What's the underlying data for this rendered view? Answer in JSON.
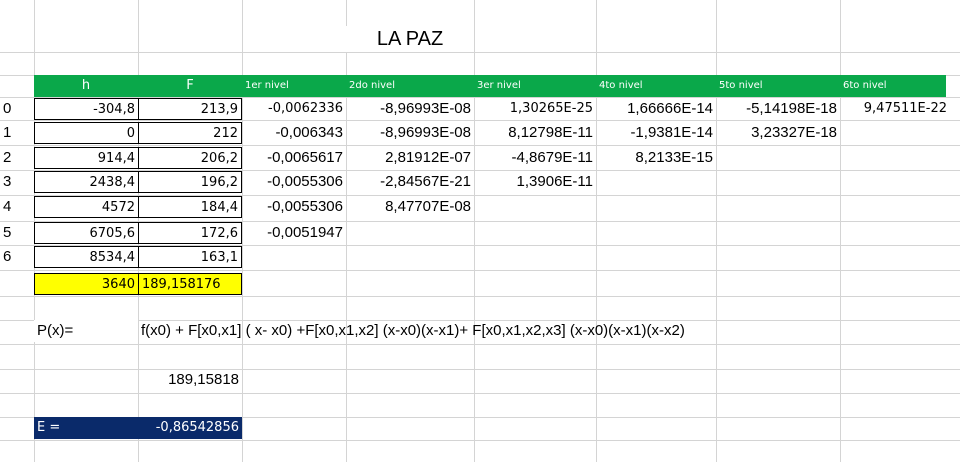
{
  "title": "LA PAZ",
  "table": {
    "col_h": "h",
    "col_f": "F",
    "levels": [
      "1er nivel",
      "2do nivel",
      "3er nivel",
      "4to nivel",
      "5to nivel",
      "6to nivel"
    ],
    "row_index": [
      "0",
      "1",
      "2",
      "3",
      "4",
      "5",
      "6"
    ],
    "h": [
      "-304,8",
      "0",
      "914,4",
      "2438,4",
      "4572",
      "6705,6",
      "8534,4"
    ],
    "f": [
      "213,9",
      "212",
      "206,2",
      "196,2",
      "184,4",
      "172,6",
      "163,1"
    ],
    "lvl1": [
      "-0,0062336",
      "-0,006343",
      "-0,0065617",
      "-0,0055306",
      "-0,0055306",
      "-0,0051947"
    ],
    "lvl2": [
      "-8,96993E-08",
      "-8,96993E-08",
      "2,81912E-07",
      "-2,84567E-21",
      "8,47707E-08"
    ],
    "lvl3": [
      "1,30265E-25",
      "8,12798E-11",
      "-4,8679E-11",
      "1,3906E-11"
    ],
    "lvl4": [
      "1,66666E-14",
      "-1,9381E-14",
      "8,2133E-15"
    ],
    "lvl5": [
      "-5,14198E-18",
      "3,23327E-18"
    ],
    "lvl6": [
      "9,47511E-22"
    ]
  },
  "eval": {
    "x": "3640",
    "fx": "189,158176"
  },
  "poly": {
    "label": "P(x)=",
    "formula": "f(x0) + F[x0,x1] ( x- x0) +F[x0,x1,x2] (x-x0)(x-x1)+ F[x0,x1,x2,x3]  (x-x0)(x-x1)(x-x2)",
    "value": "189,15818"
  },
  "error": {
    "label": "E =",
    "value": "-0,86542856"
  },
  "colors": {
    "header_green": "#0aa84a",
    "highlight_yellow": "#ffff00",
    "error_navy": "#0a2a6a"
  }
}
